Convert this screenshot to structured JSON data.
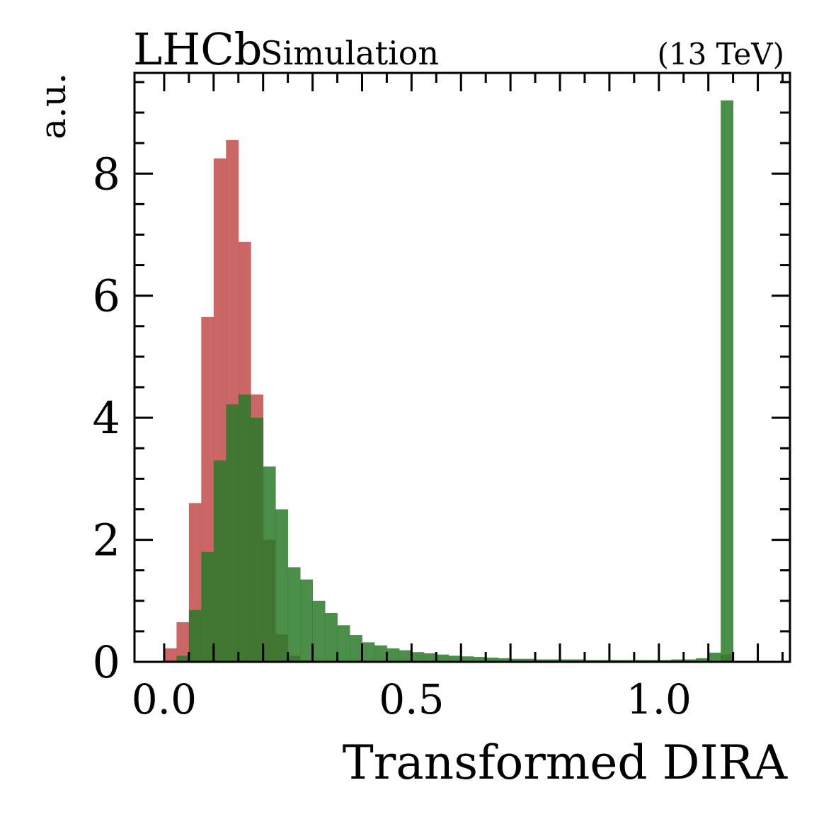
{
  "header": {
    "experiment": "LHCb",
    "label": "Simulation",
    "energy": "(13 TeV)"
  },
  "chart_data": {
    "type": "bar",
    "xlabel": "Transformed DIRA",
    "ylabel": "a.u.",
    "xlim": [
      -0.06,
      1.265
    ],
    "ylim": [
      0,
      9.65
    ],
    "xticks": [
      0.0,
      0.5,
      1.0
    ],
    "xtick_labels": [
      "0.0",
      "0.5",
      "1.0"
    ],
    "yticks": [
      0,
      2,
      4,
      6,
      8
    ],
    "ytick_labels": [
      "0",
      "2",
      "4",
      "6",
      "8"
    ],
    "grid": false,
    "legend": false,
    "bin_edges": [
      0.0,
      0.025,
      0.05,
      0.075,
      0.1,
      0.125,
      0.15,
      0.175,
      0.2,
      0.225,
      0.25,
      0.275,
      0.3,
      0.325,
      0.35,
      0.375,
      0.4,
      0.425,
      0.45,
      0.475,
      0.5,
      0.525,
      0.55,
      0.575,
      0.6,
      0.625,
      0.65,
      0.675,
      0.7,
      0.725,
      0.75,
      0.775,
      0.8,
      0.825,
      0.85,
      0.875,
      0.9,
      0.925,
      0.95,
      0.975,
      1.0,
      1.025,
      1.05,
      1.075,
      1.1,
      1.125,
      1.15
    ],
    "series": [
      {
        "color": "#c55555",
        "opacity": 0.9,
        "values": [
          0.22,
          0.65,
          2.6,
          5.65,
          8.25,
          8.55,
          6.88,
          4.38,
          2.0,
          0.45,
          0.1,
          0.03,
          0.01,
          0.0,
          0.0,
          0.0,
          0.0,
          0.0,
          0.0,
          0.0,
          0.0,
          0.0,
          0.0,
          0.0,
          0.0,
          0.0,
          0.0,
          0.0,
          0.0,
          0.0,
          0.0,
          0.0,
          0.0,
          0.0,
          0.0,
          0.0,
          0.0,
          0.0,
          0.0,
          0.0,
          0.0,
          0.0,
          0.0,
          0.0,
          0.0,
          0.12
        ]
      },
      {
        "color": "#2a7a2a",
        "opacity": 0.85,
        "values": [
          0.02,
          0.1,
          0.85,
          1.8,
          3.3,
          4.22,
          4.38,
          4.0,
          3.2,
          2.5,
          1.55,
          1.35,
          1.0,
          0.8,
          0.6,
          0.44,
          0.32,
          0.27,
          0.22,
          0.19,
          0.16,
          0.14,
          0.12,
          0.1,
          0.09,
          0.08,
          0.07,
          0.06,
          0.05,
          0.05,
          0.04,
          0.04,
          0.04,
          0.04,
          0.03,
          0.03,
          0.03,
          0.03,
          0.03,
          0.03,
          0.03,
          0.04,
          0.04,
          0.06,
          0.15,
          9.2
        ]
      }
    ]
  }
}
